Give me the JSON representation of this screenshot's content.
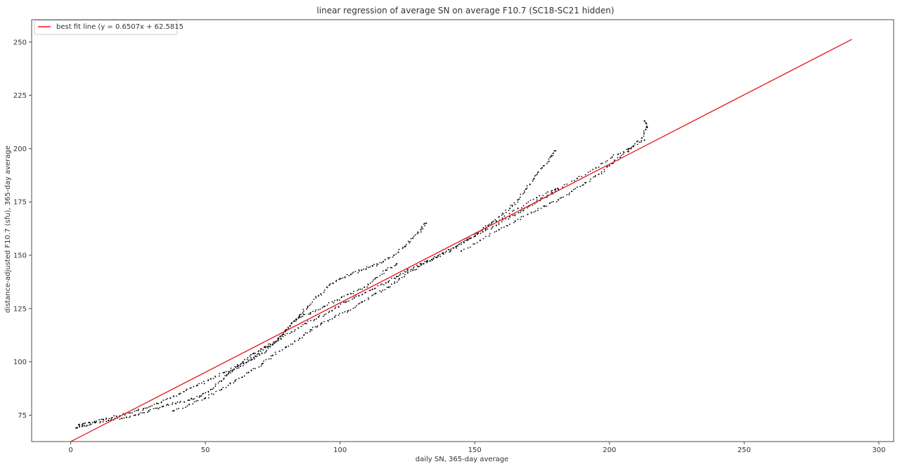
{
  "chart_data": {
    "type": "scatter",
    "title": "linear regression of average SN on average F10.7 (SC18-SC21 hidden)",
    "xlabel": "daily SN, 365-day average",
    "ylabel": "distance-adjusted F10.7 (sfu), 365-day average",
    "xlim": [
      -14.5,
      305.5
    ],
    "ylim": [
      62.6,
      260.5
    ],
    "xticks": [
      0,
      50,
      100,
      150,
      200,
      250,
      300
    ],
    "yticks": [
      75,
      100,
      125,
      150,
      175,
      200,
      225,
      250
    ],
    "grid": false,
    "legend_position": "top-left",
    "series": [
      {
        "name": "",
        "kind": "scatter-trace",
        "color": "#000000",
        "points": [
          [
            2,
            69
          ],
          [
            5,
            70
          ],
          [
            9,
            71.5
          ],
          [
            14,
            72.5
          ],
          [
            19,
            73.5
          ],
          [
            24,
            75
          ],
          [
            29,
            77
          ],
          [
            34,
            79
          ],
          [
            39,
            80.5
          ],
          [
            44,
            82
          ],
          [
            48,
            84
          ],
          [
            52,
            87
          ],
          [
            56,
            91
          ],
          [
            60,
            96
          ],
          [
            64,
            100
          ],
          [
            68,
            104
          ],
          [
            72,
            107
          ],
          [
            77,
            110
          ],
          [
            82,
            114
          ],
          [
            87,
            118
          ],
          [
            92,
            121
          ],
          [
            97,
            124
          ],
          [
            102,
            128
          ],
          [
            107,
            131
          ],
          [
            112,
            134
          ],
          [
            117,
            137
          ],
          [
            121,
            140
          ],
          [
            125,
            143
          ],
          [
            130,
            146
          ],
          [
            134,
            148
          ],
          [
            138,
            151
          ],
          [
            143,
            154
          ],
          [
            148,
            158
          ],
          [
            153,
            161
          ],
          [
            158,
            164
          ],
          [
            163,
            168
          ],
          [
            168,
            171
          ],
          [
            173,
            175
          ],
          [
            177,
            178
          ],
          [
            181,
            181
          ],
          [
            3,
            70.5
          ],
          [
            7,
            71.5
          ],
          [
            12,
            73
          ],
          [
            17,
            74.5
          ],
          [
            22,
            76
          ],
          [
            27,
            78
          ],
          [
            32,
            80.5
          ],
          [
            37,
            83
          ],
          [
            42,
            86
          ],
          [
            47,
            89
          ],
          [
            52,
            92
          ],
          [
            57,
            95
          ],
          [
            62,
            98
          ],
          [
            67,
            101
          ],
          [
            71,
            104
          ],
          [
            75,
            108
          ],
          [
            79,
            113
          ],
          [
            82,
            118
          ],
          [
            85,
            122
          ],
          [
            88,
            126
          ],
          [
            92,
            131
          ],
          [
            96,
            136
          ],
          [
            100,
            139
          ],
          [
            104,
            141
          ],
          [
            108,
            143
          ],
          [
            112,
            145
          ],
          [
            112,
            145
          ],
          [
            116,
            147
          ],
          [
            120,
            150
          ],
          [
            124,
            154
          ],
          [
            127,
            158
          ],
          [
            130,
            162
          ],
          [
            132,
            165
          ],
          [
            38,
            77
          ],
          [
            44,
            80
          ],
          [
            50,
            83
          ],
          [
            56,
            87
          ],
          [
            61,
            91
          ],
          [
            66,
            95
          ],
          [
            71,
            99
          ],
          [
            75,
            103
          ],
          [
            80,
            107
          ],
          [
            85,
            111
          ],
          [
            89,
            115
          ],
          [
            93,
            118
          ],
          [
            98,
            121
          ],
          [
            103,
            124
          ],
          [
            108,
            128
          ],
          [
            113,
            132
          ],
          [
            118,
            135
          ],
          [
            122,
            139
          ],
          [
            127,
            143
          ],
          [
            131,
            146
          ],
          [
            131,
            146
          ],
          [
            136,
            149
          ],
          [
            141,
            152
          ],
          [
            146,
            156
          ],
          [
            151,
            160
          ],
          [
            155,
            164
          ],
          [
            159,
            168
          ],
          [
            163,
            172
          ],
          [
            166,
            176
          ],
          [
            169,
            181
          ],
          [
            172,
            186
          ],
          [
            175,
            191
          ],
          [
            178,
            196
          ],
          [
            180,
            199
          ],
          [
            58,
            94
          ],
          [
            63,
            98
          ],
          [
            68,
            102
          ],
          [
            73,
            107
          ],
          [
            78,
            112
          ],
          [
            82,
            118
          ],
          [
            85,
            121
          ],
          [
            89,
            123
          ],
          [
            94,
            126
          ],
          [
            99,
            129
          ],
          [
            104,
            132
          ],
          [
            109,
            135
          ],
          [
            113,
            139
          ],
          [
            117,
            143
          ],
          [
            121,
            146
          ],
          [
            145,
            152
          ],
          [
            152,
            157
          ],
          [
            159,
            162
          ],
          [
            165,
            166
          ],
          [
            171,
            170
          ],
          [
            176,
            173
          ],
          [
            181,
            176
          ],
          [
            186,
            180
          ],
          [
            191,
            184
          ],
          [
            196,
            188
          ],
          [
            200,
            192
          ],
          [
            204,
            196
          ],
          [
            208,
            200
          ],
          [
            212,
            205
          ],
          [
            214,
            210
          ],
          [
            213,
            213
          ],
          [
            150,
            160
          ],
          [
            158,
            166
          ],
          [
            166,
            172
          ],
          [
            173,
            177
          ],
          [
            180,
            181
          ],
          [
            188,
            186
          ],
          [
            195,
            191
          ],
          [
            201,
            196
          ],
          [
            207,
            200
          ],
          [
            213,
            204
          ]
        ]
      },
      {
        "name": "best fit line (y = 0.6507x + 62.5815",
        "kind": "line",
        "color": "#e8111b",
        "slope": 0.6507,
        "intercept": 62.5815,
        "x_range": [
          0,
          290
        ]
      }
    ]
  }
}
